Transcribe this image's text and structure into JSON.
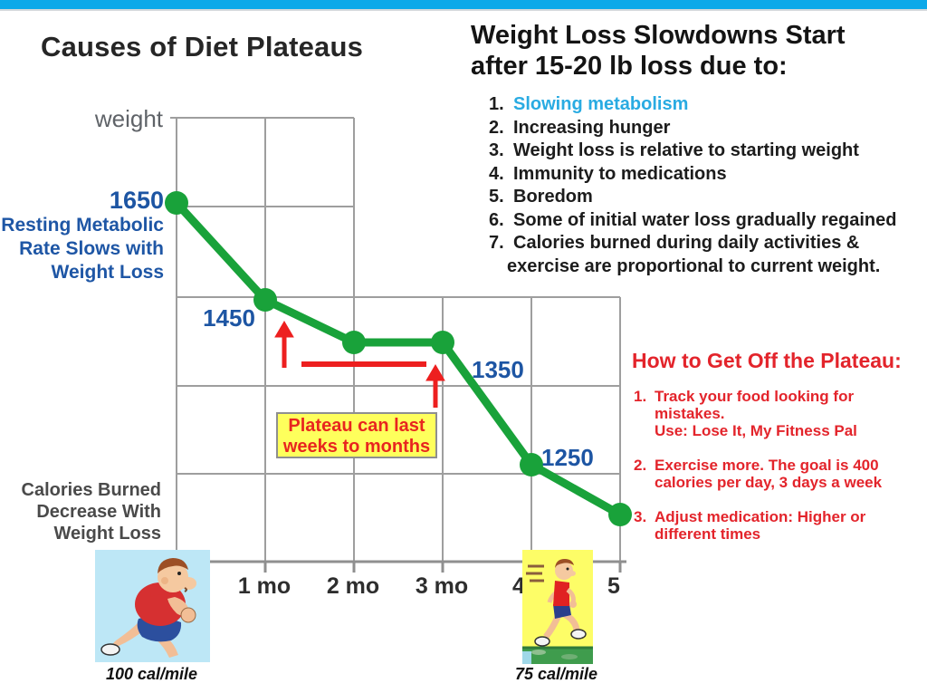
{
  "page": {
    "top_bar_color": "#0DA9E9",
    "accent_blue": "#29ABE2",
    "label_blue": "#1D55A3",
    "line_green": "#19A23A",
    "alert_red": "#E32227",
    "callout_yellow": "#FEFF5C"
  },
  "left_panel": {
    "title": "Causes of Diet Plateaus",
    "y_axis_label": "weight",
    "metabolic_note": {
      "line1": "Resting Metabolic",
      "line2": "Rate Slows with",
      "line3": "Weight Loss"
    },
    "calories_note": {
      "line1": "Calories Burned",
      "line2": "Decrease With",
      "line3": "Weight Loss"
    },
    "plateau_callout": {
      "line1": "Plateau can last",
      "line2": "weeks to months"
    },
    "runner_left_caption": "100 cal/mile",
    "runner_right_caption": "75 cal/mile"
  },
  "chart_data": {
    "type": "line",
    "title": "Causes of Diet Plateaus",
    "xlabel": "months",
    "ylabel": "weight",
    "grid": true,
    "line_color": "#19A23A",
    "x_tick_labels": [
      "1 mo",
      "2 mo",
      "3 mo",
      "4",
      "5"
    ],
    "points": [
      {
        "month": 0,
        "value": 1650,
        "label": "1650"
      },
      {
        "month": 1,
        "value": 1450,
        "label": "1450"
      },
      {
        "month": 2,
        "value": 1350,
        "label": ""
      },
      {
        "month": 3,
        "value": 1350,
        "label": "1350"
      },
      {
        "month": 4,
        "value": 1250,
        "label": "1250"
      },
      {
        "month": 5,
        "value": 1150,
        "label": ""
      }
    ],
    "annotations": [
      "Plateau can last weeks to months",
      "Resting Metabolic Rate Slows with Weight Loss",
      "Calories Burned Decrease With Weight Loss"
    ]
  },
  "right_panel": {
    "title_line1": "Weight Loss Slowdowns Start",
    "title_line2": "after 15-20 lb loss due to:",
    "causes": [
      {
        "num": "1.",
        "text": "Slowing metabolism"
      },
      {
        "num": "2.",
        "text": "Increasing hunger"
      },
      {
        "num": "3.",
        "text": "Weight loss is relative to starting weight"
      },
      {
        "num": "4.",
        "text": "Immunity to medications"
      },
      {
        "num": "5.",
        "text": "Boredom"
      },
      {
        "num": "6.",
        "text": "Some of initial water loss gradually regained"
      },
      {
        "num": "7.",
        "text": "Calories burned during daily activities &",
        "text2": "exercise are proportional to current weight."
      }
    ],
    "howto": {
      "title": "How to Get Off the Plateau:",
      "items": [
        {
          "num": "1.",
          "line1": "Track your food looking for mistakes.",
          "line2": "Use: Lose It, My Fitness Pal"
        },
        {
          "num": "2.",
          "line1": "Exercise more. The goal is 400",
          "line2": "calories per day, 3 days a week"
        },
        {
          "num": "3.",
          "line1": "Adjust medication: Higher or",
          "line2": "different times"
        }
      ]
    }
  }
}
